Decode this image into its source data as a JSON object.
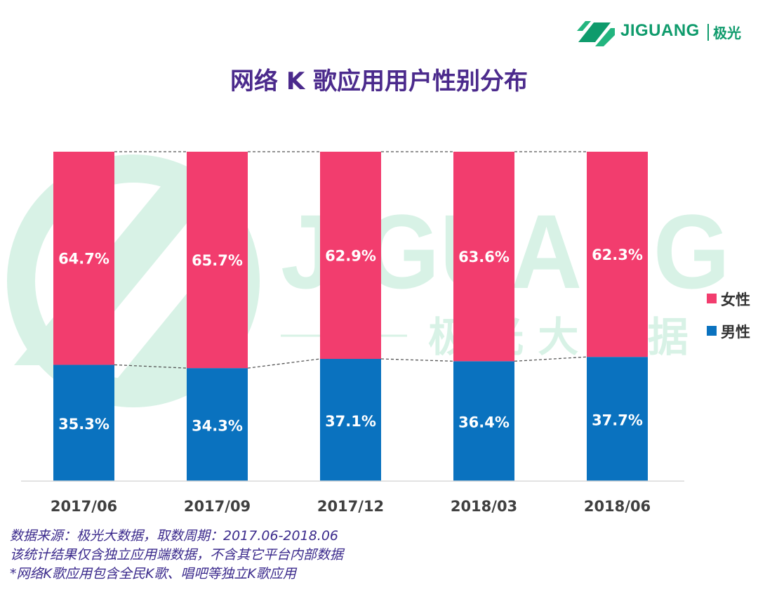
{
  "brand": {
    "logo_text": "JIGUANG",
    "logo_cn": "极光",
    "watermark_text": "JIGUANG",
    "watermark_cn": "极 光 大 数 据"
  },
  "colors": {
    "female": "#f23d6e",
    "male": "#0a72bf",
    "title": "#4b2a8c",
    "brand": "#0f9b6c",
    "watermark": "#b9e8d2"
  },
  "chart_data": {
    "type": "bar",
    "stacked": true,
    "title": "网络 K 歌应用用户性别分布",
    "categories": [
      "2017/06",
      "2017/09",
      "2017/12",
      "2018/03",
      "2018/06"
    ],
    "series": [
      {
        "name": "男性",
        "values": [
          35.3,
          34.3,
          37.1,
          36.4,
          37.7
        ],
        "labels": [
          "35.3%",
          "34.3%",
          "37.1%",
          "36.4%",
          "37.7%"
        ]
      },
      {
        "name": "女性",
        "values": [
          64.7,
          65.7,
          62.9,
          63.6,
          62.3
        ],
        "labels": [
          "64.7%",
          "65.7%",
          "62.9%",
          "63.6%",
          "62.3%"
        ]
      }
    ],
    "legend": [
      "女性",
      "男性"
    ],
    "ylim": [
      0,
      100
    ],
    "grid": false,
    "legend_position": "right"
  },
  "notes": [
    "数据来源：极光大数据，取数周期：2017.06-2018.06",
    "该统计结果仅含独立应用端数据，不含其它平台内部数据",
    " *网络K歌应用包含全民K歌、唱吧等独立K歌应用"
  ]
}
